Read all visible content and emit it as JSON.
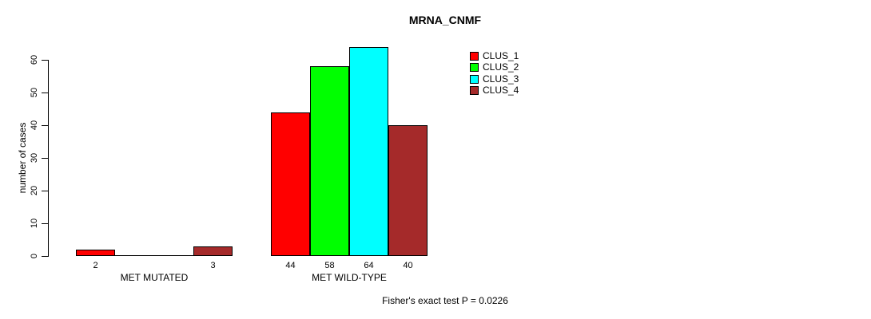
{
  "chart_data": {
    "type": "bar",
    "title": "MRNA_CNMF",
    "ylabel": "number of cases",
    "xlabel": "",
    "ylim": [
      0,
      64
    ],
    "yticks": [
      0,
      10,
      20,
      30,
      40,
      50,
      60
    ],
    "grid": false,
    "legend_position": "top-right",
    "categories": [
      "MET MUTATED",
      "MET WILD-TYPE"
    ],
    "series": [
      {
        "name": "CLUS_1",
        "color": "#FF0000",
        "values": [
          2,
          44
        ]
      },
      {
        "name": "CLUS_2",
        "color": "#00FF00",
        "values": [
          0,
          58
        ]
      },
      {
        "name": "CLUS_3",
        "color": "#00FFFF",
        "values": [
          0,
          64
        ]
      },
      {
        "name": "CLUS_4",
        "color": "#A52A2A",
        "values": [
          3,
          40
        ]
      }
    ],
    "bar_value_labels": [
      [
        "2",
        "",
        "",
        "3"
      ],
      [
        "44",
        "58",
        "64",
        "40"
      ]
    ],
    "annotation": "Fisher's exact test P = 0.0226",
    "colors": {
      "axis": "#000000",
      "text": "#000000",
      "background": "#FFFFFF"
    }
  }
}
